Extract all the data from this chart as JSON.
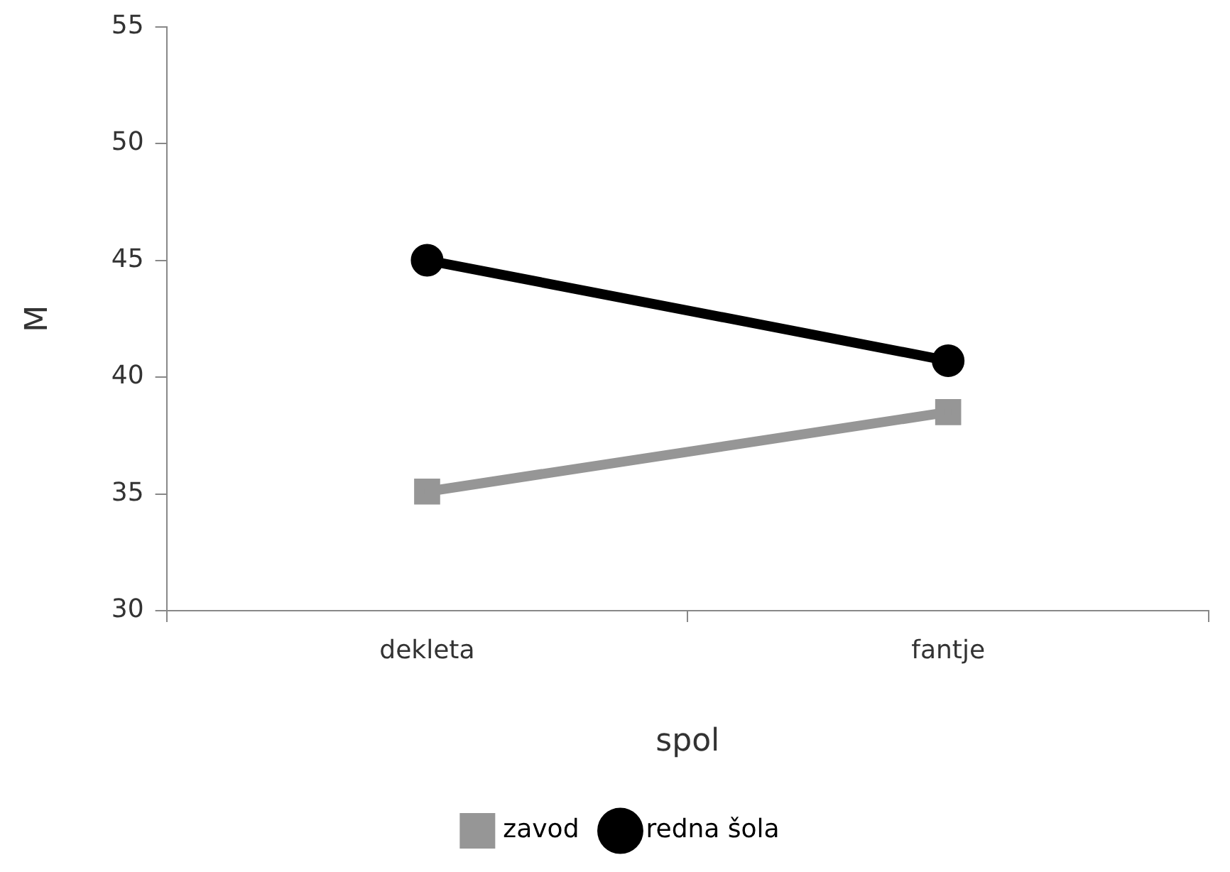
{
  "chart_data": {
    "type": "line",
    "xlabel": "spol",
    "ylabel": "M",
    "categories": [
      "dekleta",
      "fantje"
    ],
    "series": [
      {
        "name": "zavod",
        "color": "#969696",
        "values": [
          35.1,
          38.5
        ],
        "marker": "square"
      },
      {
        "name": "redna šola",
        "color": "#000000",
        "values": [
          45.0,
          40.7
        ],
        "marker": "circle"
      }
    ],
    "ylim": [
      30,
      55
    ],
    "yticks": [
      30,
      35,
      40,
      45,
      50,
      55
    ],
    "grid": false,
    "legend": "bottom",
    "line_style": "solid"
  }
}
